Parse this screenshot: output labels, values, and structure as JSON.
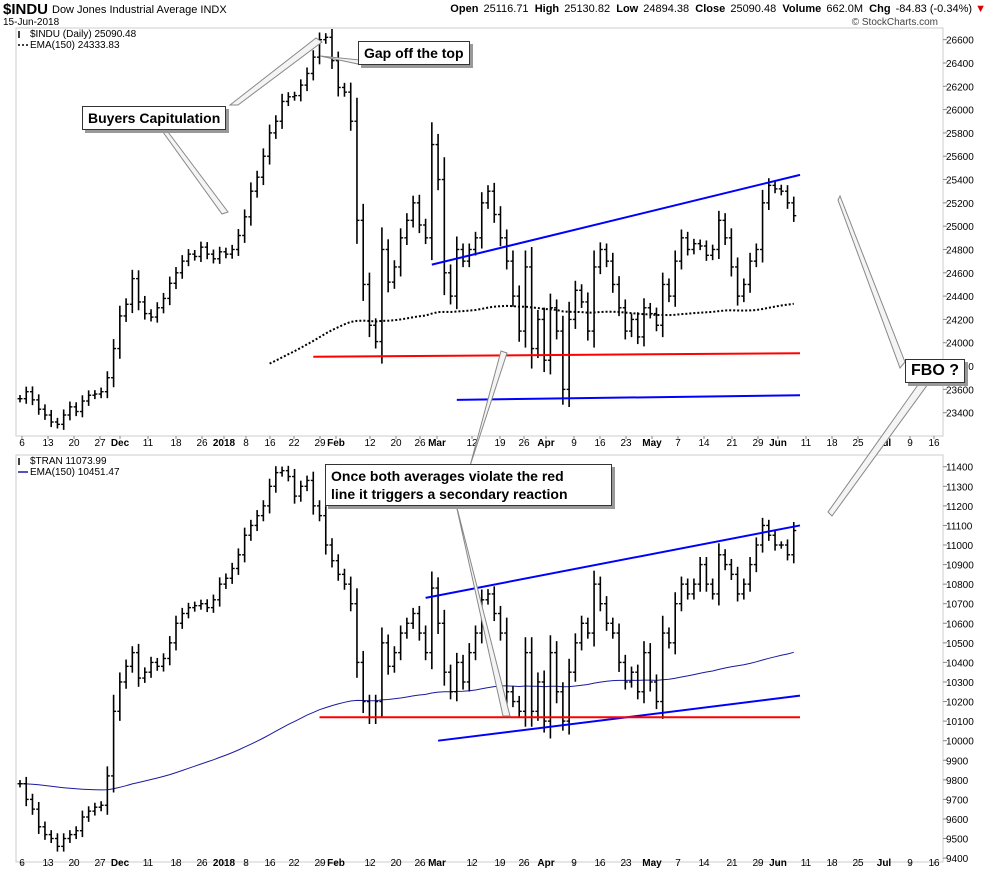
{
  "header": {
    "symbol": "$INDU",
    "name": "Dow Jones Industrial Average",
    "exchange": "INDX",
    "date": "15-Jun-2018",
    "quote": {
      "open_label": "Open",
      "open": "25116.71",
      "high_label": "High",
      "high": "25130.82",
      "low_label": "Low",
      "low": "24894.38",
      "close_label": "Close",
      "close": "25090.48",
      "volume_label": "Volume",
      "volume": "662.0M",
      "chg_label": "Chg",
      "chg": "-84.83 (-0.34%)",
      "chg_arrow": "▼"
    },
    "credit": "© StockCharts.com"
  },
  "annotations": {
    "buyers": "Buyers Capitulation",
    "gap": "Gap off the top",
    "once_line1": "Once both averages violate the red",
    "once_line2": "line it triggers a secondary reaction",
    "fbo": "FBO ?"
  },
  "colors": {
    "bars": "#000000",
    "channel": "#0000ff",
    "support": "#ff0000",
    "ema_transports": "#1a1aa0",
    "ema_industrials": "#000000"
  },
  "chart_data": [
    {
      "type": "ohlc",
      "name": "$INDU (Daily)",
      "legend": [
        {
          "label": "$INDU (Daily) 25090.48",
          "marker": "black"
        },
        {
          "label": "EMA(150) 24333.83",
          "marker": "dotted black"
        }
      ],
      "ylim": [
        23200,
        26700
      ],
      "yticks": [
        23400,
        23600,
        23800,
        24000,
        24200,
        24400,
        24600,
        24800,
        25000,
        25200,
        25400,
        25600,
        25800,
        26000,
        26200,
        26400,
        26600
      ],
      "xticks": [
        "6",
        "13",
        "20",
        "27",
        "Dec",
        "11",
        "18",
        "26",
        "2018",
        "8",
        "16",
        "22",
        "29",
        "Feb",
        "12",
        "20",
        "26",
        "Mar",
        "12",
        "19",
        "26",
        "Apr",
        "9",
        "16",
        "23",
        "May",
        "7",
        "14",
        "21",
        "29",
        "Jun",
        "11",
        "18",
        "25",
        "Jul",
        "9",
        "16"
      ],
      "closes": [
        23520,
        23580,
        23510,
        23430,
        23380,
        23320,
        23300,
        23380,
        23450,
        23410,
        23500,
        23550,
        23560,
        23580,
        23700,
        23950,
        24230,
        24330,
        24550,
        24350,
        24250,
        24220,
        24300,
        24380,
        24510,
        24600,
        24700,
        24760,
        24740,
        24820,
        24760,
        24720,
        24780,
        24760,
        24800,
        24920,
        25080,
        25300,
        25420,
        25600,
        25800,
        25900,
        26070,
        26110,
        26120,
        26210,
        26310,
        26450,
        26600,
        26620,
        26420,
        26190,
        26150,
        25900,
        25050,
        24500,
        24150,
        24010,
        24800,
        24520,
        24650,
        24900,
        25050,
        25200,
        25010,
        24900,
        25700,
        25400,
        24600,
        24400,
        24800,
        24700,
        24800,
        24900,
        25200,
        25300,
        25100,
        24900,
        24700,
        24400,
        24100,
        24650,
        23950,
        24200,
        23850,
        24300,
        24100,
        23600,
        24200,
        24450,
        24350,
        24100,
        24650,
        24800,
        24700,
        24500,
        24300,
        24100,
        24200,
        24050,
        24300,
        24250,
        24150,
        24500,
        24400,
        24700,
        24900,
        24800,
        24850,
        24830,
        24750,
        24800,
        25050,
        24900,
        24650,
        24400,
        24500,
        24700,
        24800,
        25200,
        25350,
        25320,
        25300,
        25200,
        25090
      ],
      "ema150_from_index": 40,
      "ema150_end": 24333.83,
      "lines": [
        {
          "color": "blue",
          "label": "upper channel",
          "from": [
            66,
            24670
          ],
          "to": [
            125,
            25440
          ]
        },
        {
          "color": "blue",
          "label": "lower channel",
          "from": [
            70,
            23510
          ],
          "to": [
            125,
            23550
          ]
        },
        {
          "color": "red",
          "label": "support",
          "from": [
            47,
            23880
          ],
          "to": [
            125,
            23910
          ]
        }
      ]
    },
    {
      "type": "ohlc",
      "name": "$TRAN",
      "legend": [
        {
          "label": "$TRAN 11073.99",
          "marker": "black"
        },
        {
          "label": "EMA(150) 10451.47",
          "marker": "blue"
        }
      ],
      "ylim": [
        9380,
        11460
      ],
      "yticks": [
        9400,
        9500,
        9600,
        9700,
        9800,
        9900,
        10000,
        10100,
        10200,
        10300,
        10400,
        10500,
        10600,
        10700,
        10800,
        10900,
        11000,
        11100,
        11200,
        11300,
        11400
      ],
      "xticks": [
        "6",
        "13",
        "20",
        "27",
        "Dec",
        "11",
        "18",
        "26",
        "2018",
        "8",
        "16",
        "22",
        "29",
        "Feb",
        "12",
        "20",
        "26",
        "Mar",
        "12",
        "19",
        "26",
        "Apr",
        "9",
        "16",
        "23",
        "May",
        "7",
        "14",
        "21",
        "29",
        "Jun",
        "11",
        "18",
        "25",
        "Jul",
        "9",
        "16"
      ],
      "closes": [
        9780,
        9700,
        9650,
        9560,
        9520,
        9500,
        9460,
        9500,
        9520,
        9540,
        9610,
        9640,
        9660,
        9670,
        9820,
        10150,
        10300,
        10380,
        10450,
        10320,
        10350,
        10400,
        10380,
        10420,
        10500,
        10600,
        10650,
        10680,
        10690,
        10700,
        10680,
        10720,
        10800,
        10830,
        10880,
        10950,
        11050,
        11100,
        11150,
        11200,
        11300,
        11370,
        11380,
        11350,
        11250,
        11300,
        11330,
        11200,
        11150,
        11000,
        10920,
        10850,
        10800,
        10700,
        10400,
        10200,
        10120,
        10200,
        10500,
        10380,
        10450,
        10550,
        10600,
        10650,
        10550,
        10450,
        10780,
        10600,
        10350,
        10250,
        10400,
        10300,
        10450,
        10550,
        10720,
        10750,
        10650,
        10550,
        10250,
        10200,
        10150,
        10450,
        10150,
        10300,
        10100,
        10450,
        10250,
        10100,
        10350,
        10500,
        10600,
        10550,
        10800,
        10700,
        10600,
        10550,
        10400,
        10300,
        10350,
        10250,
        10450,
        10300,
        10200,
        10550,
        10500,
        10700,
        10800,
        10750,
        10800,
        10900,
        10800,
        10750,
        10950,
        10900,
        10850,
        10750,
        10800,
        10900,
        11000,
        11100,
        11050,
        11000,
        11000,
        10950,
        11074
      ],
      "ema150_from_index": 0,
      "ema150_end": 10451.47,
      "lines": [
        {
          "color": "blue",
          "label": "upper channel",
          "from": [
            65,
            10730
          ],
          "to": [
            125,
            11100
          ]
        },
        {
          "color": "blue",
          "label": "lower channel",
          "from": [
            67,
            10000
          ],
          "to": [
            125,
            10230
          ]
        },
        {
          "color": "red",
          "label": "support",
          "from": [
            48,
            10120
          ],
          "to": [
            125,
            10120
          ]
        }
      ]
    }
  ]
}
